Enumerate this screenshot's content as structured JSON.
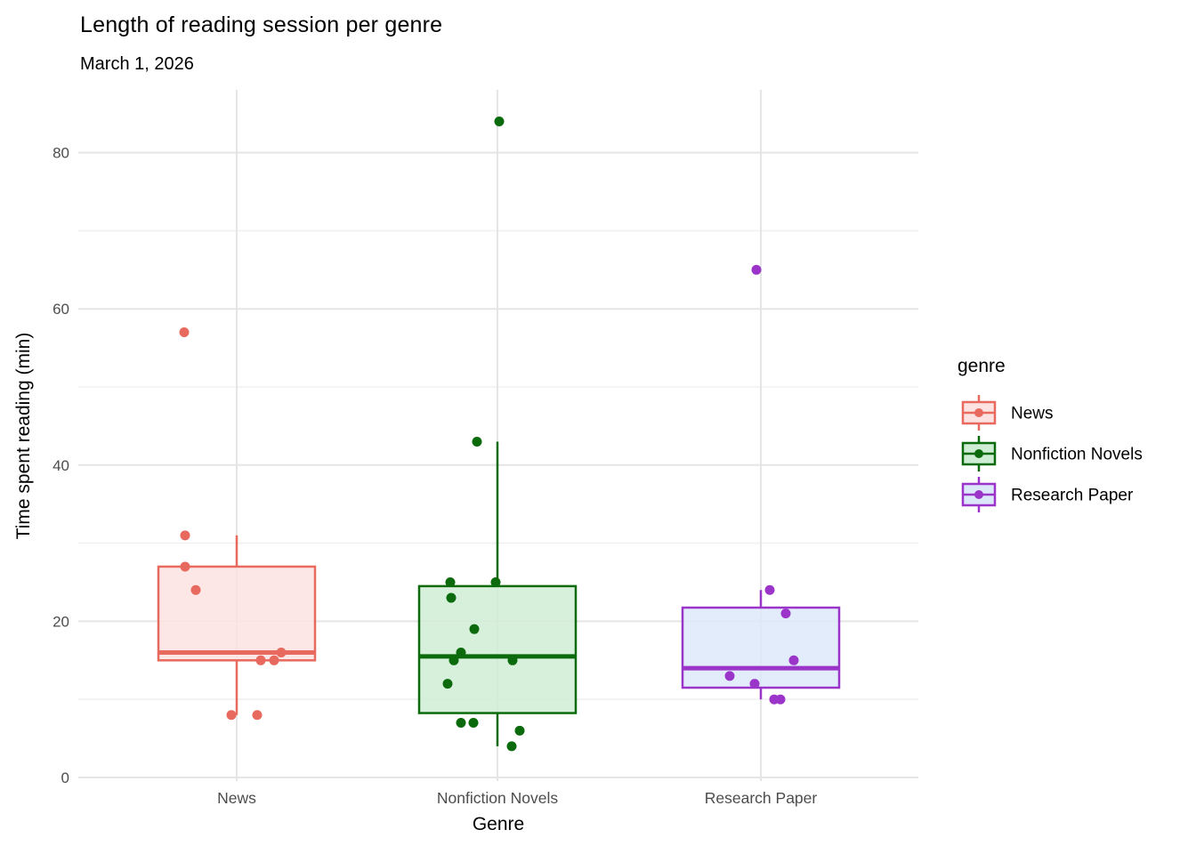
{
  "chart_data": {
    "type": "boxplot",
    "overlay": "jittered_points",
    "title": "Length of reading session per genre",
    "subtitle": "March 1, 2026",
    "xlabel": "Genre",
    "ylabel": "Time spent reading (min)",
    "ylim": [
      0,
      88
    ],
    "y_major_ticks": [
      0,
      20,
      40,
      60,
      80
    ],
    "y_minor_ticks": [
      10,
      30,
      50,
      70
    ],
    "grid": "on",
    "legend_position": "right",
    "legend_title": "genre",
    "categories": [
      "News",
      "Nonfiction Novels",
      "Research Paper"
    ],
    "groups": [
      {
        "label": "News",
        "stroke": "#E8695E",
        "fill": "#FCE2E0",
        "values": [
          57,
          31,
          27,
          24,
          16,
          15,
          15,
          8,
          8
        ],
        "box": {
          "whisker_low": 8,
          "q1": 15,
          "median": 16,
          "q3": 27,
          "whisker_high": 31,
          "outliers": [
            57
          ]
        },
        "points": [
          {
            "v": 57,
            "dx": -59
          },
          {
            "v": 31,
            "dx": -58
          },
          {
            "v": 27,
            "dx": -58
          },
          {
            "v": 24,
            "dx": -46
          },
          {
            "v": 16,
            "dx": 50
          },
          {
            "v": 15,
            "dx": 27
          },
          {
            "v": 15,
            "dx": 42
          },
          {
            "v": 8,
            "dx": -6
          },
          {
            "v": 8,
            "dx": 23
          }
        ]
      },
      {
        "label": "Nonfiction Novels",
        "stroke": "#0B6A0B",
        "fill": "#CEEDD4",
        "values": [
          84,
          43,
          25,
          25,
          23,
          19,
          16,
          15,
          15,
          12,
          7,
          7,
          6,
          4
        ],
        "box": {
          "whisker_low": 4,
          "q1": 8.25,
          "median": 15.5,
          "q3": 24.5,
          "whisker_high": 43,
          "outliers": [
            84
          ]
        },
        "points": [
          {
            "v": 84,
            "dx": 2
          },
          {
            "v": 43,
            "dx": -23
          },
          {
            "v": 25,
            "dx": -53
          },
          {
            "v": 25,
            "dx": -2
          },
          {
            "v": 23,
            "dx": -52
          },
          {
            "v": 19,
            "dx": -26
          },
          {
            "v": 16,
            "dx": -41
          },
          {
            "v": 15,
            "dx": -49
          },
          {
            "v": 15,
            "dx": 17
          },
          {
            "v": 12,
            "dx": -56
          },
          {
            "v": 7,
            "dx": -41
          },
          {
            "v": 7,
            "dx": -27
          },
          {
            "v": 6,
            "dx": 25
          },
          {
            "v": 4,
            "dx": 16
          }
        ]
      },
      {
        "label": "Research Paper",
        "stroke": "#9B35C9",
        "fill": "#DCE8FA",
        "values": [
          65,
          24,
          21,
          15,
          13,
          12,
          10,
          10
        ],
        "box": {
          "whisker_low": 10,
          "q1": 11.5,
          "median": 14,
          "q3": 21.75,
          "whisker_high": 24,
          "outliers": [
            65
          ]
        },
        "points": [
          {
            "v": 65,
            "dx": -5
          },
          {
            "v": 24,
            "dx": 10
          },
          {
            "v": 21,
            "dx": 28
          },
          {
            "v": 15,
            "dx": 37
          },
          {
            "v": 13,
            "dx": -35
          },
          {
            "v": 12,
            "dx": -7
          },
          {
            "v": 10,
            "dx": 15
          },
          {
            "v": 10,
            "dx": 22
          }
        ]
      }
    ],
    "colors": {
      "grid_major": "#E5E5E5",
      "grid_minor": "#F0F0F0",
      "tick_label": "#4D4D4D",
      "text": "#000000"
    }
  }
}
